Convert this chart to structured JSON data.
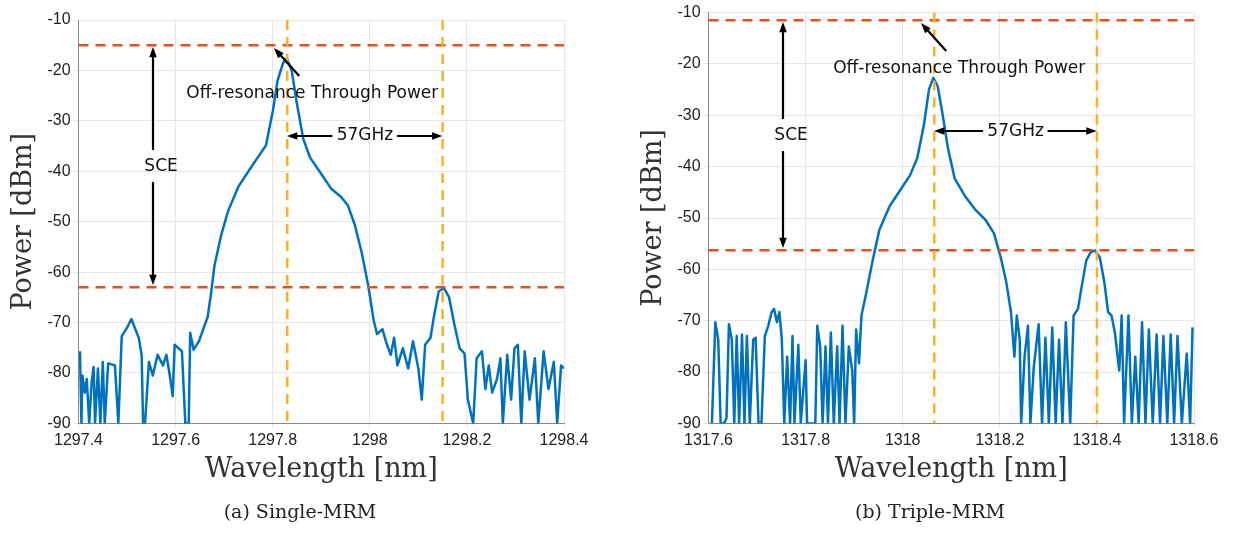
{
  "chart_data": [
    {
      "type": "line",
      "xlabel": "Wavelength [nm]",
      "ylabel": "Power [dBm]",
      "xlim": [
        1297.4,
        1298.4
      ],
      "xticks": [
        1297.4,
        1297.6,
        1297.8,
        1298,
        1298.2,
        1298.4
      ],
      "ylim": [
        -90,
        -10
      ],
      "yticks": [
        -90,
        -80,
        -70,
        -60,
        -50,
        -40,
        -30,
        -20,
        -10
      ],
      "grid": true,
      "legend": false,
      "marker": "none",
      "series": [
        {
          "color": "#0072bd",
          "x": [
            1297.403,
            1297.406,
            1297.408,
            1297.413,
            1297.417,
            1297.422,
            1297.427,
            1297.431,
            1297.434,
            1297.44,
            1297.445,
            1297.45,
            1297.454,
            1297.461,
            1297.475,
            1297.482,
            1297.489,
            1297.5,
            1297.509,
            1297.517,
            1297.524,
            1297.53,
            1297.533,
            1297.537,
            1297.545,
            1297.553,
            1297.563,
            1297.574,
            1297.581,
            1297.588,
            1297.594,
            1297.598,
            1297.606,
            1297.613,
            1297.62,
            1297.627,
            1297.63,
            1297.637,
            1297.648,
            1297.658,
            1297.666,
            1297.673,
            1297.68,
            1297.694,
            1297.708,
            1297.729,
            1297.75,
            1297.771,
            1297.786,
            1297.8,
            1297.81,
            1297.821,
            1297.829,
            1297.839,
            1297.849,
            1297.863,
            1297.877,
            1297.899,
            1297.92,
            1297.941,
            1297.955,
            1297.969,
            1297.983,
            1297.997,
            1298.008,
            1298.015,
            1298.026,
            1298.033,
            1298.043,
            1298.05,
            1298.057,
            1298.068,
            1298.079,
            1298.089,
            1298.1,
            1298.107,
            1298.114,
            1298.125,
            1298.133,
            1298.142,
            1298.153,
            1298.163,
            1298.174,
            1298.185,
            1298.195,
            1298.202,
            1298.213,
            1298.22,
            1298.231,
            1298.238,
            1298.245,
            1298.252,
            1298.262,
            1298.269,
            1298.274,
            1298.283,
            1298.291,
            1298.298,
            1298.305,
            1298.312,
            1298.319,
            1298.329,
            1298.34,
            1298.347,
            1298.358,
            1298.368,
            1298.379,
            1298.386,
            1298.394,
            1298.4
          ],
          "values": [
            -75.7,
            -90,
            -80.5,
            -83.9,
            -81.2,
            -90,
            -81.9,
            -78.8,
            -90,
            -79.1,
            -90,
            -77.8,
            -90,
            -78.1,
            -78.5,
            -90,
            -72.7,
            -71.0,
            -69.3,
            -71.3,
            -73.0,
            -76.4,
            -90,
            -90,
            -77.8,
            -80.5,
            -76.4,
            -78.5,
            -76.4,
            -80.5,
            -84.6,
            -74.4,
            -75.1,
            -75.7,
            -90,
            -90,
            -72.0,
            -75.4,
            -73.7,
            -71.0,
            -68.9,
            -64.2,
            -58.7,
            -52.6,
            -47.9,
            -43.1,
            -40.0,
            -37.0,
            -34.9,
            -28.2,
            -22.0,
            -18.6,
            -17.6,
            -20.0,
            -26.1,
            -33.6,
            -37.3,
            -40.4,
            -43.4,
            -45.1,
            -46.8,
            -50.6,
            -56.0,
            -62.8,
            -69.6,
            -72.3,
            -71.3,
            -73.7,
            -76.4,
            -73.0,
            -78.5,
            -75.1,
            -79.1,
            -73.7,
            -79.1,
            -85.3,
            -74.4,
            -73.0,
            -68.3,
            -63.8,
            -63.2,
            -64.9,
            -70.3,
            -75.1,
            -76.1,
            -85.3,
            -90,
            -77.1,
            -75.7,
            -83.2,
            -78.5,
            -83.9,
            -81.2,
            -77.1,
            -90,
            -76.4,
            -85.3,
            -75.1,
            -74.4,
            -90,
            -75.7,
            -85.3,
            -77.1,
            -90,
            -75.7,
            -83.2,
            -77.8,
            -90,
            -78.5,
            -79.1
          ]
        }
      ],
      "ref_lines": [
        {
          "axis": "y",
          "value": -15,
          "color": "#e0531c",
          "line_style": "dashed"
        },
        {
          "axis": "y",
          "value": -63,
          "color": "#e0531c",
          "line_style": "dashed"
        },
        {
          "axis": "x",
          "value": 1297.83,
          "color": "#f5b324",
          "line_style": "dashed"
        },
        {
          "axis": "x",
          "value": 1298.15,
          "color": "#f5b324",
          "line_style": "dashed"
        }
      ],
      "annotations": [
        "Off-resonance Through Power",
        {
          "text": "57GHz",
          "x": 1297.83,
          "y": -33
        },
        "SCE",
        "(a) Single-MRM"
      ]
    },
    {
      "type": "line",
      "xlabel": "Wavelength [nm]",
      "ylabel": "Power [dBm]",
      "xlim": [
        1317.6,
        1318.6
      ],
      "xticks": [
        1317.6,
        1317.8,
        1318,
        1318.2,
        1318.4,
        1318.6
      ],
      "ylim": [
        -90,
        -10
      ],
      "yticks": [
        -90,
        -80,
        -70,
        -60,
        -50,
        -40,
        -30,
        -20,
        -10
      ],
      "grid": true,
      "legend": false,
      "marker": "none",
      "series": [
        {
          "color": "#0072bd",
          "x": [
            1317.607,
            1317.614,
            1317.62,
            1317.625,
            1317.632,
            1317.637,
            1317.642,
            1317.648,
            1317.653,
            1317.658,
            1317.663,
            1317.669,
            1317.674,
            1317.679,
            1317.685,
            1317.692,
            1317.697,
            1317.703,
            1317.709,
            1317.716,
            1317.723,
            1317.73,
            1317.735,
            1317.741,
            1317.746,
            1317.751,
            1317.756,
            1317.762,
            1317.768,
            1317.773,
            1317.777,
            1317.785,
            1317.79,
            1317.8,
            1317.803,
            1317.82,
            1317.824,
            1317.83,
            1317.835,
            1317.841,
            1317.846,
            1317.852,
            1317.858,
            1317.865,
            1317.87,
            1317.876,
            1317.882,
            1317.889,
            1317.896,
            1317.9,
            1317.904,
            1317.91,
            1317.915,
            1317.924,
            1317.938,
            1317.952,
            1317.973,
            1317.994,
            1318.015,
            1318.03,
            1318.044,
            1318.054,
            1318.063,
            1318.072,
            1318.082,
            1318.093,
            1318.107,
            1318.128,
            1318.149,
            1318.17,
            1318.188,
            1318.202,
            1318.213,
            1318.223,
            1318.23,
            1318.235,
            1318.241,
            1318.244,
            1318.251,
            1318.258,
            1318.263,
            1318.27,
            1318.28,
            1318.287,
            1318.294,
            1318.301,
            1318.308,
            1318.315,
            1318.322,
            1318.329,
            1318.336,
            1318.345,
            1318.352,
            1318.361,
            1318.368,
            1318.378,
            1318.387,
            1318.396,
            1318.406,
            1318.415,
            1318.423,
            1318.43,
            1318.437,
            1318.446,
            1318.451,
            1318.456,
            1318.465,
            1318.472,
            1318.479,
            1318.486,
            1318.493,
            1318.5,
            1318.507,
            1318.515,
            1318.523,
            1318.53,
            1318.537,
            1318.545,
            1318.552,
            1318.559,
            1318.566,
            1318.575,
            1318.585,
            1318.592,
            1318.597
          ],
          "values": [
            -90,
            -70.3,
            -73.7,
            -90,
            -90,
            -89,
            -70.7,
            -73.7,
            -90,
            -73,
            -90,
            -72.7,
            -90,
            -73,
            -90,
            -73.7,
            -73.3,
            -90,
            -90,
            -73,
            -71,
            -68.3,
            -67.7,
            -70.3,
            -68.3,
            -73.7,
            -90,
            -77,
            -90,
            -73,
            -90,
            -74.7,
            -90,
            -77.7,
            -90,
            -90,
            -71,
            -75,
            -90,
            -75,
            -90,
            -72.3,
            -90,
            -75,
            -90,
            -71,
            -90,
            -75,
            -79.7,
            -90,
            -71.7,
            -78.3,
            -69,
            -65,
            -58.3,
            -52.3,
            -47.7,
            -44.7,
            -41.7,
            -38.3,
            -31.7,
            -25,
            -22.7,
            -24.3,
            -29.7,
            -36.3,
            -42.3,
            -45.7,
            -48.3,
            -50.3,
            -53,
            -57.7,
            -62.3,
            -68.3,
            -77,
            -69,
            -73.7,
            -90,
            -77,
            -71,
            -90,
            -79,
            -70.7,
            -90,
            -73.3,
            -90,
            -71.3,
            -90,
            -73.7,
            -90,
            -70.3,
            -90,
            -69,
            -67.7,
            -63.7,
            -58.3,
            -56.7,
            -56.3,
            -57.7,
            -62.3,
            -68.3,
            -69,
            -72.3,
            -79.7,
            -69,
            -90,
            -69,
            -90,
            -77,
            -90,
            -70.3,
            -90,
            -71.7,
            -90,
            -72.7,
            -90,
            -73,
            -90,
            -72.7,
            -90,
            -73,
            -90,
            -76.4,
            -90,
            -71.3
          ]
        }
      ],
      "ref_lines": [
        {
          "axis": "y",
          "value": -11.5,
          "color": "#e0531c",
          "line_style": "dashed"
        },
        {
          "axis": "y",
          "value": -56.3,
          "color": "#e0531c",
          "line_style": "dashed"
        },
        {
          "axis": "x",
          "value": 1318.065,
          "color": "#f5b324",
          "line_style": "dashed"
        },
        {
          "axis": "x",
          "value": 1318.4,
          "color": "#f5b324",
          "line_style": "dashed"
        }
      ],
      "annotations": [
        "Off-resonance Through Power",
        {
          "text": "57GHz",
          "x": 1318.065,
          "y": -33.1
        },
        "SCE",
        "(b) Triple-MRM"
      ]
    }
  ]
}
